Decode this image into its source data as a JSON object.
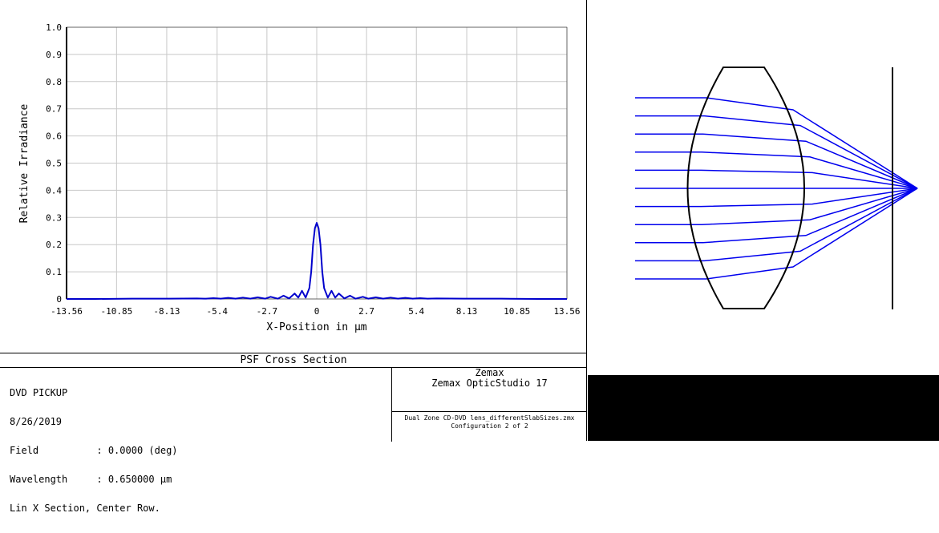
{
  "chart_data": {
    "type": "line",
    "title": "PSF Cross Section",
    "xlabel": "X-Position in µm",
    "ylabel": "Relative Irradiance",
    "xlim": [
      -13.56,
      13.56
    ],
    "ylim": [
      0,
      1.0
    ],
    "x_ticks": [
      "-13.56",
      "-10.85",
      "-8.13",
      "-5.4",
      "-2.7",
      "0",
      "2.7",
      "5.4",
      "8.13",
      "10.85",
      "13.56"
    ],
    "y_ticks": [
      "0",
      "0.1",
      "0.2",
      "0.3",
      "0.4",
      "0.5",
      "0.6",
      "0.7",
      "0.8",
      "0.9",
      "1.0"
    ],
    "grid": true,
    "line_color": "#0000cc",
    "series": [
      {
        "x": [
          -13.56,
          -12.0,
          -10.0,
          -8.0,
          -6.5,
          -6.0,
          -5.6,
          -5.2,
          -4.8,
          -4.4,
          -4.0,
          -3.6,
          -3.2,
          -2.8,
          -2.5,
          -2.1,
          -1.8,
          -1.5,
          -1.2,
          -1.0,
          -0.8,
          -0.6,
          -0.4,
          -0.3,
          -0.2,
          -0.1,
          0.0,
          0.1,
          0.2,
          0.3,
          0.4,
          0.6,
          0.8,
          1.0,
          1.2,
          1.5,
          1.8,
          2.1,
          2.5,
          2.8,
          3.2,
          3.6,
          4.0,
          4.4,
          4.8,
          5.2,
          5.6,
          6.0,
          6.5,
          8.0,
          10.0,
          12.0,
          13.56
        ],
        "y": [
          0.0,
          0.0,
          0.001,
          0.001,
          0.002,
          0.001,
          0.003,
          0.001,
          0.004,
          0.001,
          0.005,
          0.001,
          0.006,
          0.001,
          0.008,
          0.001,
          0.012,
          0.002,
          0.02,
          0.005,
          0.03,
          0.005,
          0.04,
          0.1,
          0.2,
          0.26,
          0.28,
          0.26,
          0.2,
          0.1,
          0.04,
          0.005,
          0.03,
          0.005,
          0.02,
          0.002,
          0.012,
          0.001,
          0.008,
          0.001,
          0.006,
          0.001,
          0.005,
          0.001,
          0.004,
          0.001,
          0.003,
          0.001,
          0.002,
          0.001,
          0.001,
          0.0,
          0.0
        ]
      }
    ]
  },
  "info": {
    "title": "PSF Cross Section",
    "lines": [
      "DVD PICKUP",
      "8/26/2019",
      "Field          : 0.0000 (deg)",
      "Wavelength     : 0.650000 µm",
      "Lin X Section, Center Row."
    ],
    "company": "Zemax",
    "product": "Zemax OpticStudio 17",
    "file": "Dual Zone CD-DVD lens_differentSlabSizes.zmx",
    "configuration": "Configuration 2 of 2"
  },
  "layout_view": {
    "ray_color": "#0000ee",
    "ray_heights": [
      1.0,
      0.8,
      0.6,
      0.4,
      0.2,
      0.0,
      -0.2,
      -0.4,
      -0.6,
      -0.8,
      -1.0
    ]
  }
}
